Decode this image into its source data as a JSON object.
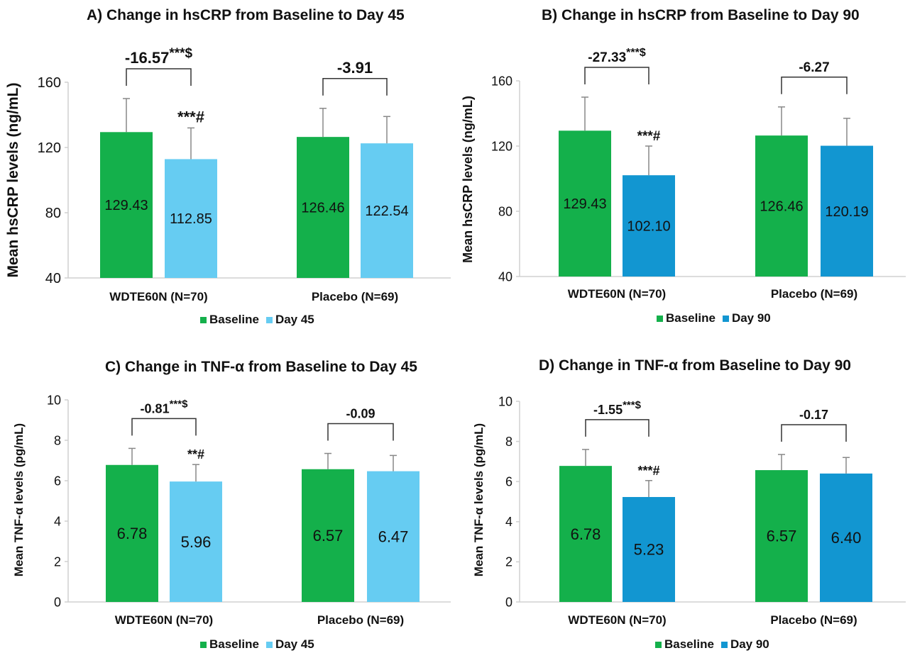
{
  "colors": {
    "baseline": "#14b04b",
    "day45": "#66ccf2",
    "day90": "#1296d1",
    "axis": "#d0d0d0",
    "error": "#888888",
    "text": "#111111"
  },
  "chart_data": [
    {
      "type": "bar",
      "title": "A)  Change in hsCRP from Baseline to Day 45",
      "ylabel": "Mean hsCRP levels (ng/mL)",
      "ylim": [
        40,
        160
      ],
      "yticks": [
        "40",
        "80",
        "120",
        "160"
      ],
      "categories": [
        "WDTE60N (N=70)",
        "Placebo (N=69)"
      ],
      "series": [
        {
          "name": "Baseline",
          "values": [
            129.43,
            126.46
          ],
          "labels": [
            "129.43",
            "126.46"
          ],
          "error_top": [
            150,
            144
          ]
        },
        {
          "name": "Day 45",
          "values": [
            112.85,
            122.54
          ],
          "labels": [
            "112.85",
            "122.54"
          ],
          "error_top": [
            132,
            139
          ]
        }
      ],
      "sig_marks": [
        "***#",
        ""
      ],
      "brackets": [
        {
          "label": "-16.57",
          "sup": "***$"
        },
        {
          "label": "-3.91",
          "sup": ""
        }
      ],
      "legend": [
        "Baseline",
        "Day 45"
      ]
    },
    {
      "type": "bar",
      "title": "B) Change in hsCRP from Baseline to Day 90",
      "ylabel": "Mean hsCRP levels (ng/mL)",
      "ylim": [
        40,
        160
      ],
      "yticks": [
        "40",
        "80",
        "120",
        "160"
      ],
      "categories": [
        "WDTE60N (N=70)",
        "Placebo (N=69)"
      ],
      "series": [
        {
          "name": "Baseline",
          "values": [
            129.43,
            126.46
          ],
          "labels": [
            "129.43",
            "126.46"
          ],
          "error_top": [
            150,
            144
          ]
        },
        {
          "name": "Day 90",
          "values": [
            102.1,
            120.19
          ],
          "labels": [
            "102.10",
            "120.19"
          ],
          "error_top": [
            120,
            137
          ]
        }
      ],
      "sig_marks": [
        "***#",
        ""
      ],
      "brackets": [
        {
          "label": "-27.33",
          "sup": "***$"
        },
        {
          "label": "-6.27",
          "sup": ""
        }
      ],
      "legend": [
        "Baseline",
        "Day 90"
      ]
    },
    {
      "type": "bar",
      "title": "C) Change in TNF-α from Baseline to Day 45",
      "ylabel": "Mean TNF-α levels (pg/mL)",
      "ylim": [
        0,
        10
      ],
      "yticks": [
        "0",
        "2",
        "4",
        "6",
        "8",
        "10"
      ],
      "categories": [
        "WDTE60N (N=70)",
        "Placebo (N=69)"
      ],
      "series": [
        {
          "name": "Baseline",
          "values": [
            6.78,
            6.57
          ],
          "labels": [
            "6.78",
            "6.57"
          ],
          "error_top": [
            7.6,
            7.35
          ]
        },
        {
          "name": "Day 45",
          "values": [
            5.96,
            6.47
          ],
          "labels": [
            "5.96",
            "6.47"
          ],
          "error_top": [
            6.8,
            7.25
          ]
        }
      ],
      "sig_marks": [
        "**#",
        ""
      ],
      "brackets": [
        {
          "label": "-0.81",
          "sup": "***$"
        },
        {
          "label": "-0.09",
          "sup": ""
        }
      ],
      "legend": [
        "Baseline",
        "Day 45"
      ]
    },
    {
      "type": "bar",
      "title": "D) Change in TNF-α from Baseline to Day 90",
      "ylabel": "Mean TNF-α levels (pg/mL)",
      "ylim": [
        0,
        10
      ],
      "yticks": [
        "0",
        "2",
        "4",
        "6",
        "8",
        "10"
      ],
      "categories": [
        "WDTE60N (N=70)",
        "Placebo (N=69)"
      ],
      "series": [
        {
          "name": "Baseline",
          "values": [
            6.78,
            6.57
          ],
          "labels": [
            "6.78",
            "6.57"
          ],
          "error_top": [
            7.6,
            7.35
          ]
        },
        {
          "name": "Day 90",
          "values": [
            5.23,
            6.4
          ],
          "labels": [
            "5.23",
            "6.40"
          ],
          "error_top": [
            6.05,
            7.2
          ]
        }
      ],
      "sig_marks": [
        "***#",
        ""
      ],
      "brackets": [
        {
          "label": "-1.55",
          "sup": "***$"
        },
        {
          "label": "-0.17",
          "sup": ""
        }
      ],
      "legend": [
        "Baseline",
        "Day 90"
      ]
    }
  ]
}
